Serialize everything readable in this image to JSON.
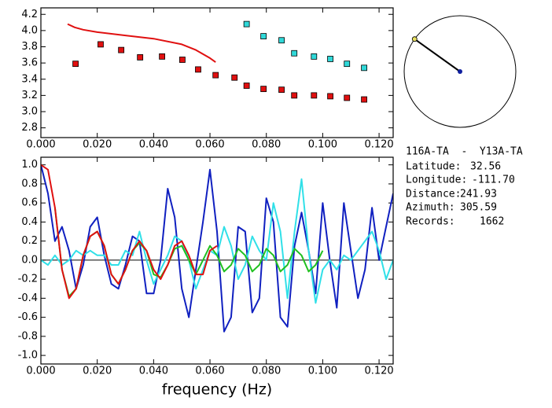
{
  "chart_data": [
    {
      "type": "scatter",
      "xlim": [
        0,
        0.125
      ],
      "ylim": [
        2.68,
        4.28
      ],
      "xticks": [
        {
          "value": 0,
          "label": "0.000"
        },
        {
          "value": 0.02,
          "label": "0.020"
        },
        {
          "value": 0.04,
          "label": "0.040"
        },
        {
          "value": 0.06,
          "label": "0.060"
        },
        {
          "value": 0.08,
          "label": "0.080"
        },
        {
          "value": 0.1,
          "label": "0.100"
        },
        {
          "value": 0.12,
          "label": "0.120"
        }
      ],
      "yticks": [
        2.8,
        {
          "value": 3.0,
          "label": "3.0"
        },
        3.2,
        3.4,
        3.6,
        3.8,
        {
          "value": 4.0,
          "label": "4.0"
        },
        4.2
      ],
      "series": [
        {
          "color": "#e01010",
          "style": "square",
          "x": [
            0.0123,
            0.0212,
            0.0285,
            0.0352,
            0.043,
            0.0502,
            0.0558,
            0.062,
            0.0687,
            0.073,
            0.079,
            0.0854,
            0.0899,
            0.0969,
            0.1027,
            0.1086,
            0.1147
          ],
          "values": [
            3.59,
            3.83,
            3.76,
            3.67,
            3.68,
            3.64,
            3.52,
            3.45,
            3.42,
            3.32,
            3.28,
            3.27,
            3.2,
            3.2,
            3.19,
            3.17,
            3.15
          ]
        },
        {
          "color": "#30d8d8",
          "style": "square",
          "x": [
            0.073,
            0.079,
            0.0854,
            0.0899,
            0.0969,
            0.1027,
            0.1086,
            0.1147
          ],
          "values": [
            4.08,
            3.93,
            3.88,
            3.72,
            3.68,
            3.65,
            3.59,
            3.54
          ]
        },
        {
          "color": "#e01010",
          "style": "line",
          "x": [
            0.0095,
            0.012,
            0.015,
            0.02,
            0.03,
            0.04,
            0.05,
            0.055,
            0.06,
            0.062
          ],
          "values": [
            4.08,
            4.04,
            4.01,
            3.98,
            3.94,
            3.9,
            3.83,
            3.76,
            3.66,
            3.61
          ]
        }
      ]
    },
    {
      "type": "line",
      "xlabel": "frequency (Hz)",
      "zero_line": true,
      "xlim": [
        0,
        0.125
      ],
      "ylim": [
        -1.09,
        1.08
      ],
      "xticks": [
        {
          "value": 0,
          "label": "0.000"
        },
        {
          "value": 0.02,
          "label": "0.020"
        },
        {
          "value": 0.04,
          "label": "0.040"
        },
        {
          "value": 0.06,
          "label": "0.060"
        },
        {
          "value": 0.08,
          "label": "0.080"
        },
        {
          "value": 0.1,
          "label": "0.100"
        },
        {
          "value": 0.12,
          "label": "0.120"
        }
      ],
      "yticks": [
        {
          "value": -1.0,
          "label": "-1.0"
        },
        -0.8,
        -0.6,
        -0.4,
        -0.2,
        {
          "value": 0.0,
          "label": "0.0"
        },
        0.2,
        0.4,
        0.6,
        0.8,
        {
          "value": 1.0,
          "label": "1.0"
        }
      ],
      "series": [
        {
          "color": "#1020c0",
          "style": "line",
          "x": [
            0,
            0.0025,
            0.005,
            0.0075,
            0.01,
            0.0125,
            0.015,
            0.0175,
            0.02,
            0.0225,
            0.025,
            0.0275,
            0.03,
            0.0325,
            0.035,
            0.0375,
            0.04,
            0.0425,
            0.045,
            0.0475,
            0.05,
            0.0525,
            0.055,
            0.0575,
            0.06,
            0.0625,
            0.065,
            0.0675,
            0.07,
            0.0725,
            0.075,
            0.0775,
            0.08,
            0.0825,
            0.085,
            0.0875,
            0.09,
            0.0925,
            0.095,
            0.0975,
            0.1,
            0.1025,
            0.105,
            0.1075,
            0.11,
            0.1125,
            0.115,
            0.1175,
            0.12,
            0.1225,
            0.125
          ],
          "values": [
            1.0,
            0.7,
            0.2,
            0.35,
            0.1,
            -0.3,
            -0.05,
            0.35,
            0.45,
            0.05,
            -0.25,
            -0.3,
            -0.05,
            0.25,
            0.2,
            -0.35,
            -0.35,
            0.0,
            0.75,
            0.45,
            -0.3,
            -0.6,
            -0.1,
            0.4,
            0.95,
            0.3,
            -0.75,
            -0.6,
            0.35,
            0.3,
            -0.55,
            -0.4,
            0.65,
            0.4,
            -0.6,
            -0.7,
            0.15,
            0.5,
            0.1,
            -0.35,
            0.6,
            0.0,
            -0.5,
            0.6,
            0.1,
            -0.4,
            -0.1,
            0.55,
            0.0,
            0.35,
            0.7
          ]
        },
        {
          "color": "#30e0e8",
          "style": "line",
          "x": [
            0,
            0.0025,
            0.005,
            0.0075,
            0.01,
            0.0125,
            0.015,
            0.0175,
            0.02,
            0.0225,
            0.025,
            0.0275,
            0.03,
            0.0325,
            0.035,
            0.0375,
            0.04,
            0.0425,
            0.045,
            0.0475,
            0.05,
            0.0525,
            0.055,
            0.0575,
            0.06,
            0.0625,
            0.065,
            0.0675,
            0.07,
            0.0725,
            0.075,
            0.0775,
            0.08,
            0.0825,
            0.085,
            0.0875,
            0.09,
            0.0925,
            0.095,
            0.0975,
            0.1,
            0.1025,
            0.105,
            0.1075,
            0.11,
            0.1125,
            0.115,
            0.1175,
            0.12,
            0.1225,
            0.125
          ],
          "values": [
            0.0,
            -0.05,
            0.05,
            -0.05,
            0.0,
            0.1,
            0.05,
            0.1,
            0.05,
            0.05,
            -0.05,
            -0.05,
            0.1,
            0.05,
            0.3,
            0.0,
            -0.25,
            -0.1,
            0.05,
            0.25,
            0.2,
            0.0,
            -0.3,
            -0.1,
            0.1,
            0.05,
            0.35,
            0.15,
            -0.2,
            -0.05,
            0.25,
            0.1,
            0.0,
            0.6,
            0.3,
            -0.4,
            0.3,
            0.85,
            0.1,
            -0.45,
            -0.1,
            0.0,
            -0.1,
            0.05,
            0.0,
            0.1,
            0.2,
            0.3,
            0.1,
            -0.2,
            0.0
          ]
        },
        {
          "color": "#20c020",
          "style": "line",
          "x": [
            0.005,
            0.0075,
            0.01,
            0.0125,
            0.015,
            0.0175,
            0.02,
            0.0225,
            0.025,
            0.0275,
            0.03,
            0.0325,
            0.035,
            0.0375,
            0.04,
            0.0425,
            0.045,
            0.0475,
            0.05,
            0.0525,
            0.055,
            0.0575,
            0.06,
            0.0625,
            0.065,
            0.0675,
            0.07,
            0.0725,
            0.075,
            0.0775,
            0.08,
            0.0825,
            0.085,
            0.0875,
            0.09,
            0.0925,
            0.095,
            0.0975,
            0.1
          ],
          "values": [
            0.55,
            -0.1,
            -0.38,
            -0.3,
            0.05,
            0.25,
            0.3,
            0.15,
            -0.15,
            -0.25,
            -0.1,
            0.1,
            0.18,
            0.1,
            -0.15,
            -0.18,
            -0.05,
            0.12,
            0.15,
            0.0,
            -0.15,
            0.0,
            0.15,
            0.05,
            -0.12,
            -0.05,
            0.12,
            0.05,
            -0.12,
            -0.05,
            0.12,
            0.05,
            -0.12,
            -0.05,
            0.12,
            0.05,
            -0.12,
            -0.05,
            0.1
          ]
        },
        {
          "color": "#e01010",
          "style": "line",
          "x": [
            0,
            0.0025,
            0.005,
            0.0075,
            0.01,
            0.0125,
            0.015,
            0.0175,
            0.02,
            0.0225,
            0.025,
            0.0275,
            0.03,
            0.0325,
            0.035,
            0.0375,
            0.04,
            0.0425,
            0.045,
            0.0475,
            0.05,
            0.0525,
            0.055,
            0.0575,
            0.06,
            0.0625
          ],
          "values": [
            1.0,
            0.95,
            0.55,
            -0.1,
            -0.4,
            -0.3,
            0.05,
            0.25,
            0.3,
            0.15,
            -0.15,
            -0.25,
            -0.1,
            0.1,
            0.2,
            0.1,
            -0.1,
            -0.2,
            -0.05,
            0.15,
            0.2,
            0.05,
            -0.15,
            -0.15,
            0.1,
            0.15
          ]
        }
      ]
    }
  ],
  "info": {
    "title": "116A-TA  -  Y13A-TA",
    "fields": [
      {
        "label": "Latitude:",
        "value": 32.56
      },
      {
        "label": "Longitude:",
        "value": "-111.70"
      },
      {
        "label": "Distance:",
        "value": 241.93
      },
      {
        "label": "Azimuth:",
        "value": 305.59
      },
      {
        "label": "Records:",
        "value": 1662
      }
    ]
  }
}
